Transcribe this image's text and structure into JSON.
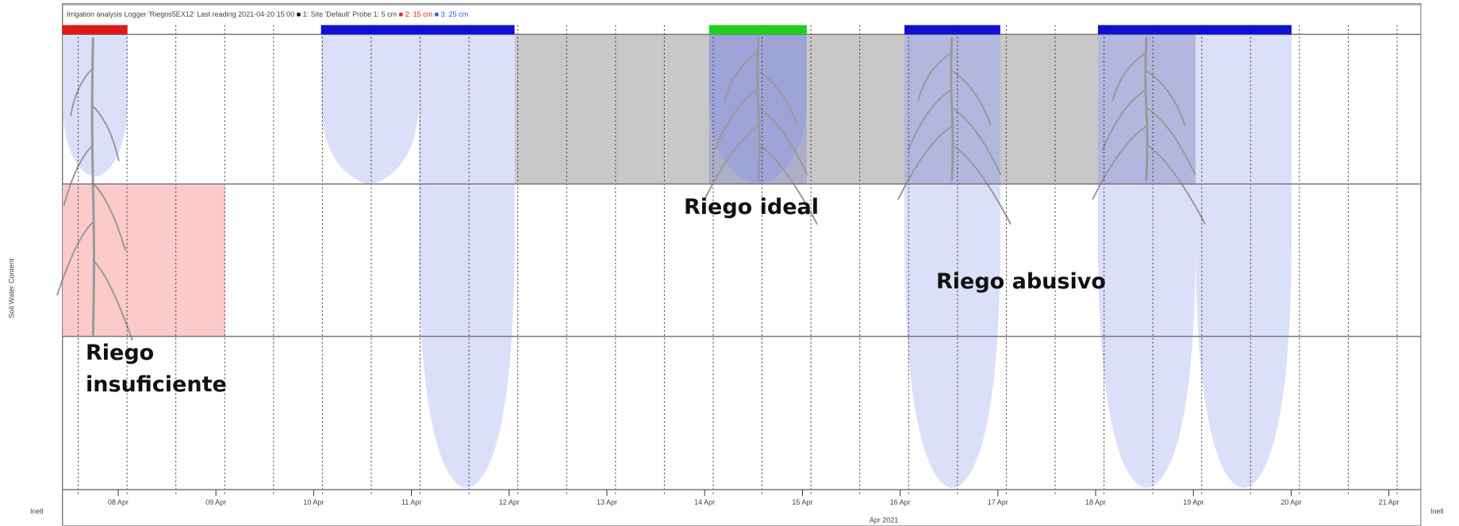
{
  "header": {
    "title": "Irrigation analysis",
    "logger": "Logger 'Riegos5EX12'",
    "last_reading": "Last reading 2021-04-20 15:00",
    "legend": [
      {
        "label": "1: Site 'Default'",
        "color": "#000000"
      },
      {
        "label": "Probe 1: 5 cm",
        "color": null
      },
      {
        "label": "2: 15 cm",
        "color": "#e02020"
      },
      {
        "label": "3: 25 cm",
        "color": "#2060e0"
      }
    ]
  },
  "x_axis": {
    "ticks": [
      "08 Apr",
      "09 Apr",
      "10 Apr",
      "11 Apr",
      "12 Apr",
      "13 Apr",
      "14 Apr",
      "15 Apr",
      "16 Apr",
      "17 Apr",
      "18 Apr",
      "19 Apr",
      "20 Apr",
      "21 Apr"
    ],
    "title": "Apr 2021"
  },
  "y_axis_label": "Soil Water Content",
  "corner_labels": [
    "Inell",
    "Inell"
  ],
  "annotations": [
    "Riego insuficiente",
    "Riego ideal",
    "Riego abusivo"
  ]
}
